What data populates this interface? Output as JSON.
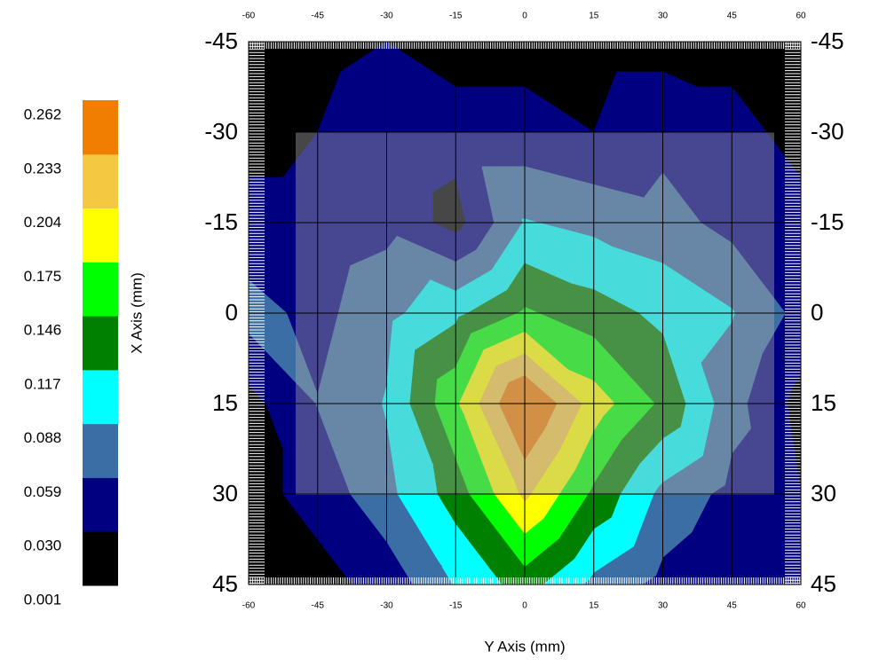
{
  "chart_data": {
    "type": "contour",
    "xlabel": "Y Axis (mm)",
    "ylabel": "X Axis (mm)",
    "x": [
      -60,
      -45,
      -30,
      -15,
      0,
      15,
      30,
      45,
      60
    ],
    "y": [
      -45,
      -30,
      -15,
      0,
      15,
      30,
      45
    ],
    "z": [
      [
        0.01,
        0.02,
        0.03,
        0.02,
        0.02,
        0.02,
        0.02,
        0.02,
        0.02
      ],
      [
        0.02,
        0.03,
        0.05,
        0.04,
        0.04,
        0.03,
        0.05,
        0.04,
        0.02
      ],
      [
        0.04,
        0.04,
        0.05,
        0.02,
        0.09,
        0.08,
        0.07,
        0.05,
        0.04
      ],
      [
        0.07,
        0.05,
        0.08,
        0.11,
        0.15,
        0.13,
        0.11,
        0.09,
        0.05
      ],
      [
        0.02,
        0.06,
        0.09,
        0.17,
        0.27,
        0.19,
        0.14,
        0.07,
        0.02
      ],
      [
        0.02,
        0.04,
        0.08,
        0.13,
        0.21,
        0.14,
        0.08,
        0.05,
        0.03
      ],
      [
        0.01,
        0.02,
        0.04,
        0.09,
        0.13,
        0.08,
        0.05,
        0.03,
        0.03
      ]
    ],
    "levels": [
      0.001,
      {
        "value": 0.03,
        "label": "0.030"
      },
      0.059,
      0.088,
      0.117,
      0.146,
      0.175,
      0.204,
      0.233,
      0.262
    ],
    "colors": [
      "#000000",
      "#000080",
      "#3a6ea5",
      "#00ffff",
      "#008000",
      "#00ff00",
      "#ffff00",
      "#f5c842",
      "#f07f00"
    ],
    "xlim": [
      -60,
      60
    ],
    "ylim": [
      -45,
      45
    ],
    "y_inverted": true,
    "xticks": [
      -60,
      -45,
      -30,
      -15,
      0,
      15,
      30,
      45,
      60
    ],
    "yticks": [
      -45,
      -30,
      -15,
      0,
      15,
      30,
      45
    ],
    "grid": true
  }
}
